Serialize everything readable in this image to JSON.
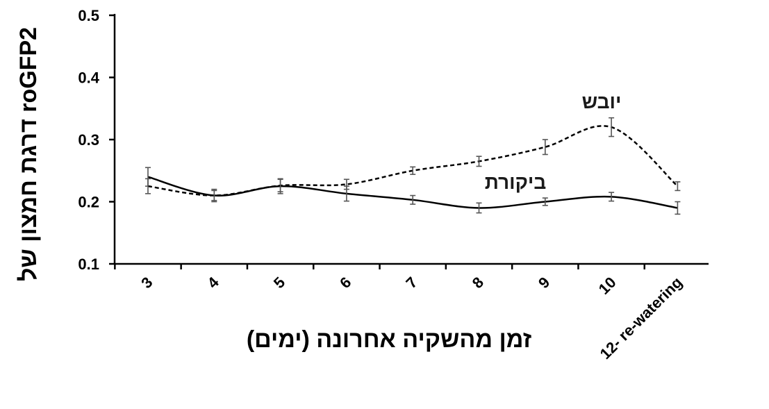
{
  "chart_data": {
    "type": "line",
    "xlabel": "זמן מהשקיה אחרונה  (ימים)",
    "ylabel": "דרגת חמצון של  roGFP2",
    "ylim": [
      0.1,
      0.5
    ],
    "yticks": [
      "0.1",
      "0.2",
      "0.3",
      "0.4",
      "0.5"
    ],
    "categories": [
      "3",
      "4",
      "5",
      "6",
      "7",
      "8",
      "9",
      "10",
      "12- re-watering"
    ],
    "grid": false,
    "series": [
      {
        "name": "ביקורת",
        "line_style": "solid",
        "color": "#000000",
        "values": [
          0.24,
          0.21,
          0.225,
          0.213,
          0.203,
          0.19,
          0.2,
          0.208,
          0.19
        ],
        "errors": [
          0.015,
          0.008,
          0.012,
          0.012,
          0.007,
          0.008,
          0.006,
          0.007,
          0.01
        ]
      },
      {
        "name": "יובש",
        "line_style": "dashed",
        "color": "#000000",
        "values": [
          0.225,
          0.21,
          0.226,
          0.228,
          0.25,
          0.265,
          0.288,
          0.32,
          0.225
        ],
        "errors": [
          0.012,
          0.01,
          0.01,
          0.008,
          0.006,
          0.008,
          0.012,
          0.015,
          0.007
        ]
      }
    ]
  }
}
